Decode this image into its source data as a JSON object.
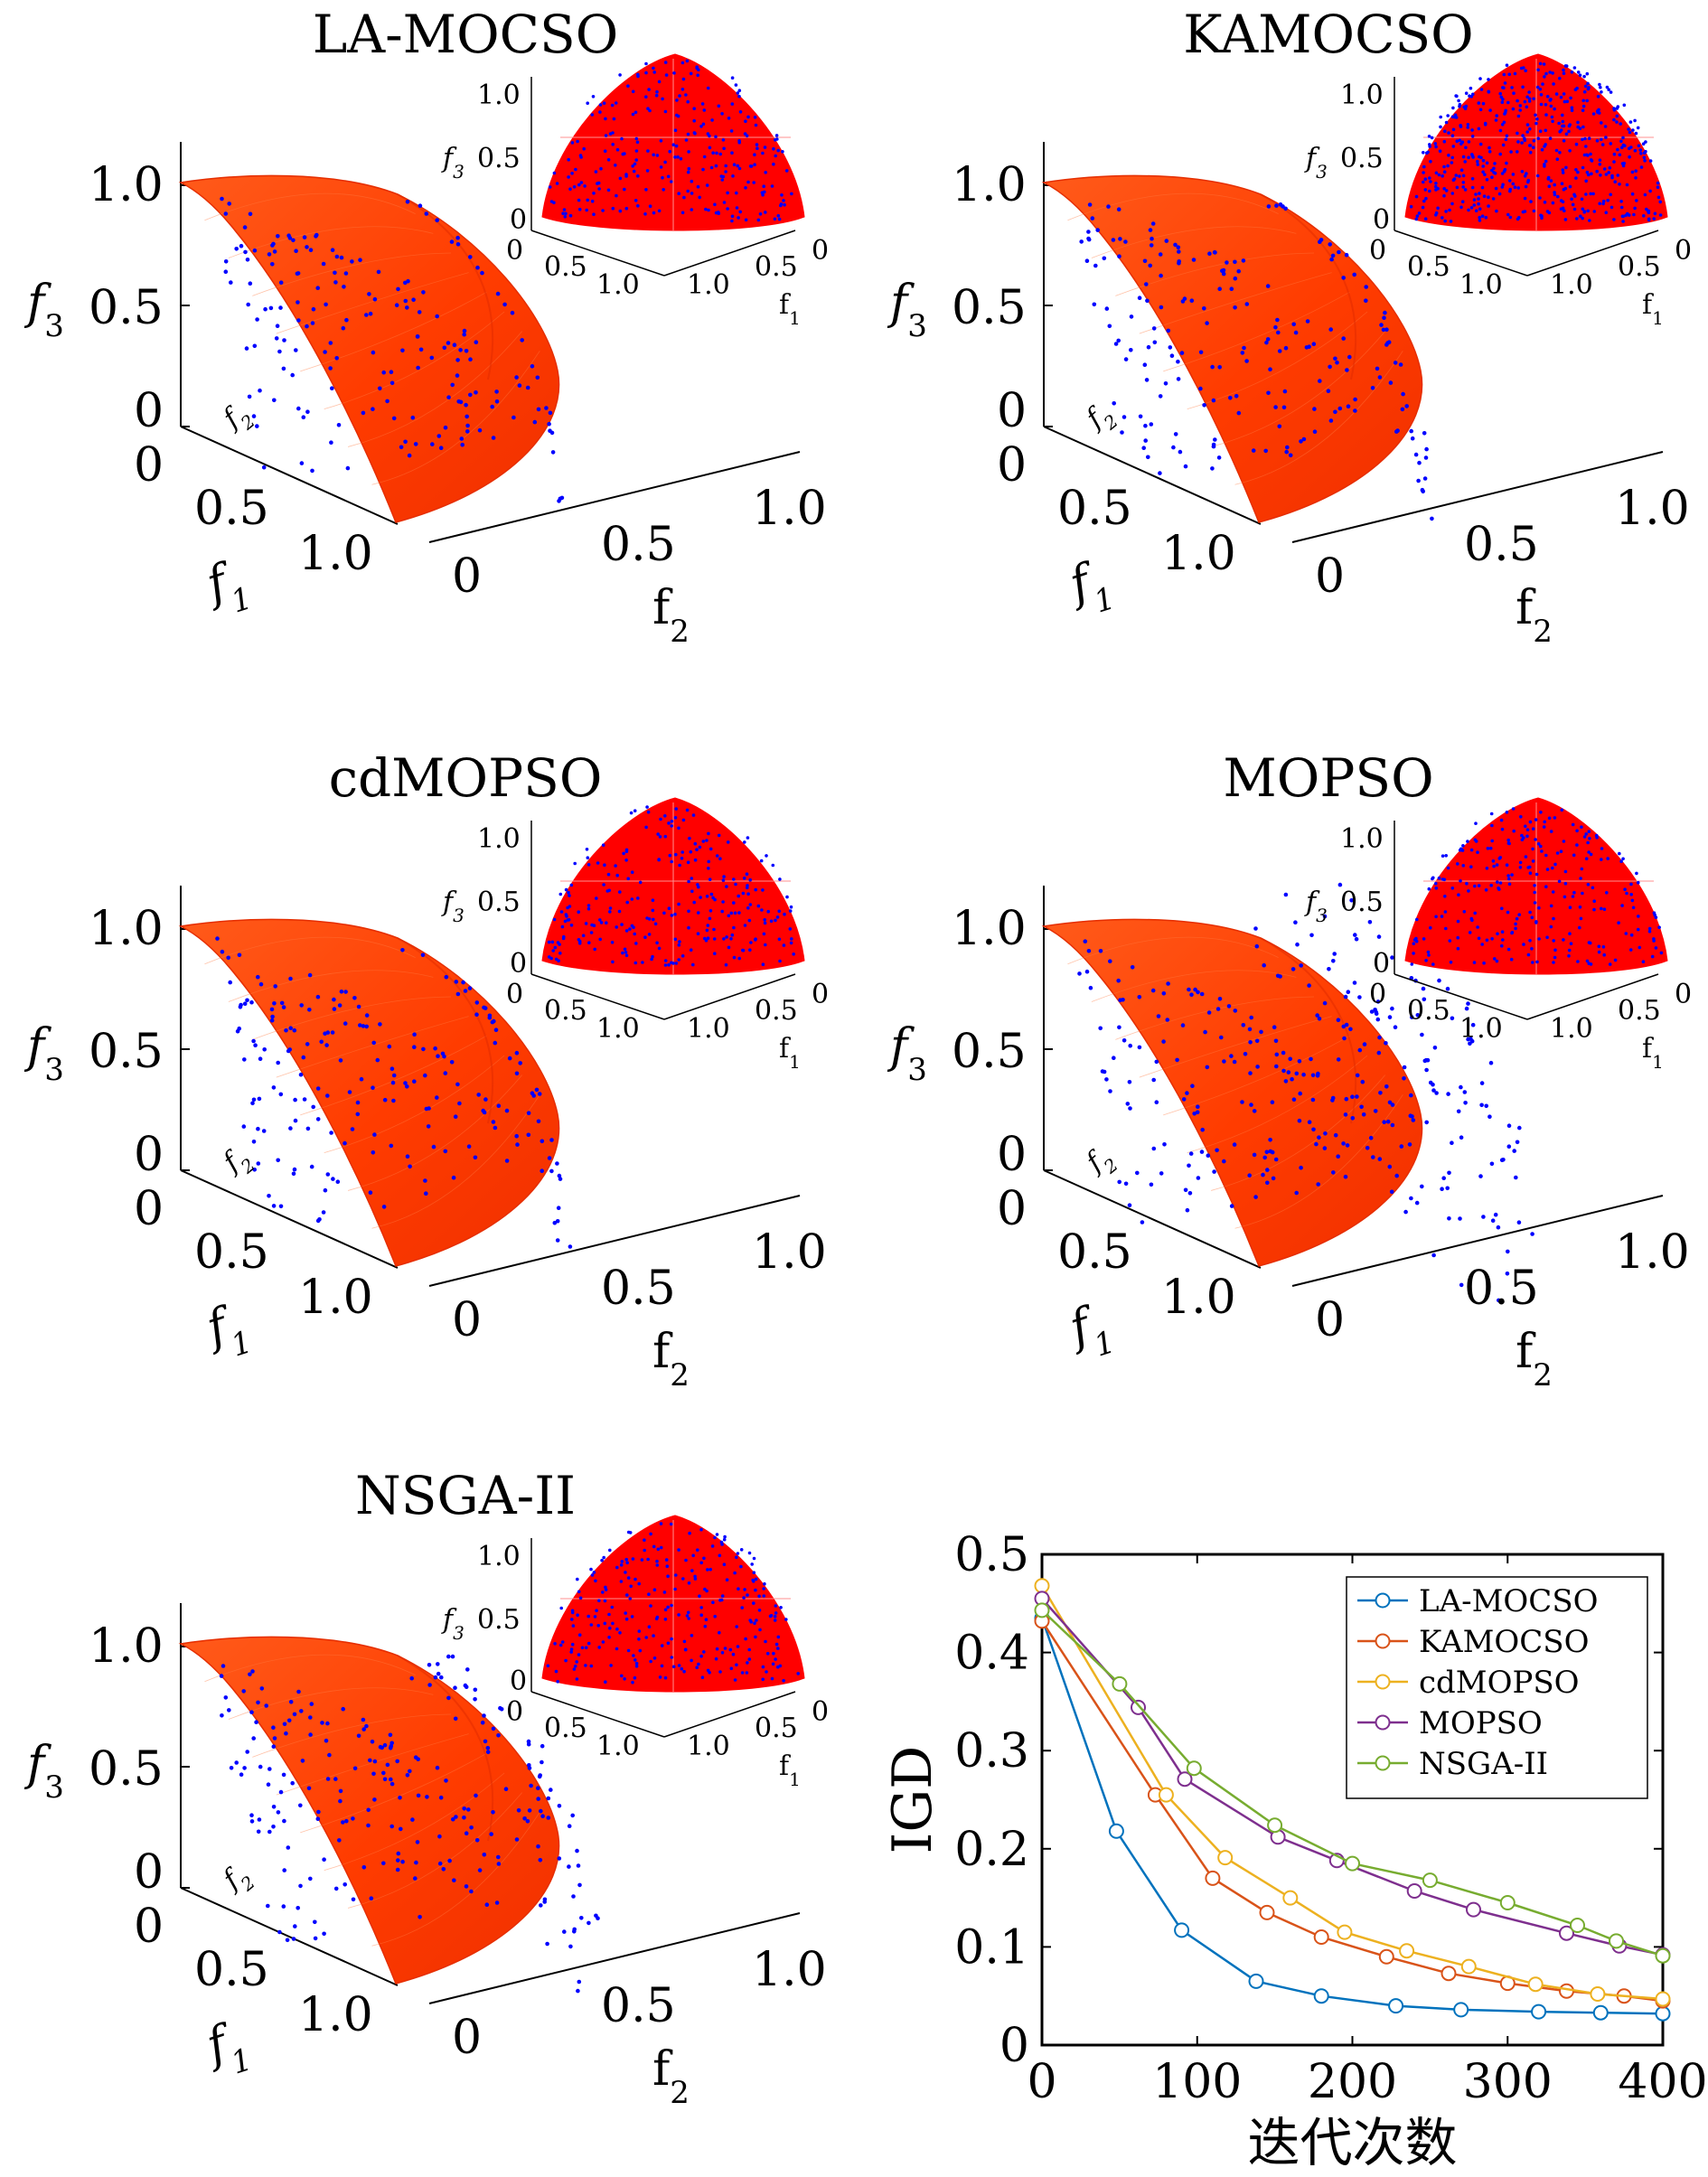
{
  "panels": [
    {
      "title": "LA-MOCSO",
      "scatter": "tight",
      "inset_density": "medium"
    },
    {
      "title": "KAMOCSO",
      "scatter": "light",
      "inset_density": "dense"
    },
    {
      "title": "cdMOPSO",
      "scatter": "light",
      "inset_density": "medium"
    },
    {
      "title": "MOPSO",
      "scatter": "wide",
      "inset_density": "medium"
    },
    {
      "title": "NSGA-II",
      "scatter": "medium",
      "inset_density": "medium"
    }
  ],
  "axis_labels": {
    "f1": "f1",
    "f2": "f2",
    "f3": "f3",
    "f1_main": "f",
    "f1_sub": "1",
    "f2_main": "f",
    "f2_sub": "2",
    "f3_main": "f",
    "f3_sub": "3"
  },
  "ticks_3d": [
    "0",
    "0.5",
    "1.0"
  ],
  "colors": {
    "surface": "#ff3c00",
    "surface_edge": "#e52e00",
    "inset_surface": "#ff0000",
    "points": "#0000ff",
    "grid": "#dddddd"
  },
  "chart_data": {
    "type": "line",
    "xlabel": "迭代次数",
    "ylabel": "IGD",
    "xlim": [
      0,
      400
    ],
    "ylim": [
      0,
      0.5
    ],
    "xticks": [
      "0",
      "100",
      "200",
      "300",
      "400"
    ],
    "yticks": [
      "0",
      "0.1",
      "0.2",
      "0.3",
      "0.4",
      "0.5"
    ],
    "legend_position": "top-right",
    "marker": "circle",
    "series": [
      {
        "name": "LA-MOCSO",
        "color": "#0072bd",
        "x": [
          0,
          48,
          90,
          138,
          180,
          228,
          270,
          320,
          360,
          400
        ],
        "y": [
          0.435,
          0.218,
          0.117,
          0.065,
          0.05,
          0.04,
          0.036,
          0.034,
          0.033,
          0.032
        ]
      },
      {
        "name": "KAMOCSO",
        "color": "#d95319",
        "x": [
          0,
          73,
          110,
          145,
          180,
          222,
          262,
          300,
          338,
          375,
          400
        ],
        "y": [
          0.432,
          0.255,
          0.17,
          0.135,
          0.11,
          0.09,
          0.073,
          0.063,
          0.055,
          0.05,
          0.045
        ]
      },
      {
        "name": "cdMOPSO",
        "color": "#edb120",
        "x": [
          0,
          80,
          118,
          160,
          195,
          235,
          275,
          318,
          358,
          400
        ],
        "y": [
          0.468,
          0.255,
          0.191,
          0.15,
          0.115,
          0.096,
          0.08,
          0.062,
          0.052,
          0.047
        ]
      },
      {
        "name": "MOPSO",
        "color": "#7e2f8e",
        "x": [
          0,
          62,
          92,
          152,
          190,
          240,
          278,
          338,
          372,
          400
        ],
        "y": [
          0.455,
          0.344,
          0.271,
          0.212,
          0.188,
          0.157,
          0.138,
          0.114,
          0.101,
          0.092
        ]
      },
      {
        "name": "NSGA-II",
        "color": "#77ac30",
        "x": [
          0,
          50,
          98,
          150,
          200,
          250,
          300,
          345,
          370,
          400
        ],
        "y": [
          0.443,
          0.368,
          0.282,
          0.224,
          0.185,
          0.168,
          0.145,
          0.122,
          0.106,
          0.091
        ]
      }
    ]
  }
}
